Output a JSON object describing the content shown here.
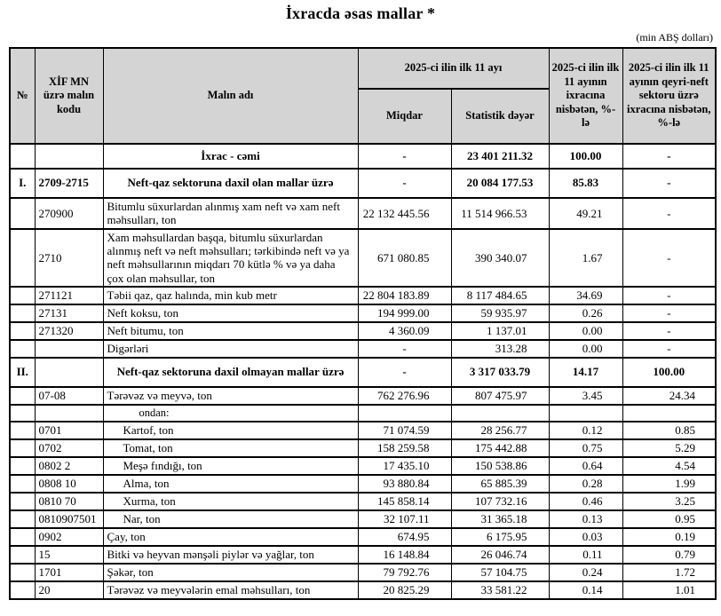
{
  "page": {
    "title": "İxracda əsas mallar *",
    "unit_note": "(min ABŞ dolları)"
  },
  "table": {
    "headers": {
      "num": "№",
      "code": "XİF MN üzrə malın kodu",
      "name": "Malın adı",
      "period_group": "2025-ci ilin ilk 11 ayı",
      "quantity": "Miqdar",
      "stat_value": "Statistik dəyər",
      "share_total_export": "2025-ci ilin ilk 11 ayının ixracına nisbətən, %-lə",
      "share_nonoil_export": "2025-ci ilin ilk 11 ayının qeyri-neft sektoru üzrə ixracına nisbətən, %-lə"
    },
    "rows": [
      {
        "num": "",
        "code": "",
        "name": "İxrac - cəmi",
        "qty": "-",
        "value": "23 401 211.32",
        "share": "100.00",
        "nonoil": "-",
        "style": "total"
      },
      {
        "num": "I.",
        "code": "2709-2715",
        "name": "Neft-qaz sektoruna daxil olan mallar üzrə",
        "qty": "-",
        "value": "20 084 177.53",
        "share": "85.83",
        "nonoil": "-",
        "style": "section"
      },
      {
        "num": "",
        "code": "270900",
        "name": "Bitumlu süxurlardan alınmış xam neft və xam neft məhsulları, ton",
        "qty": "22 132 445.56",
        "value": "11 514 966.53",
        "share": "49.21",
        "nonoil": "-",
        "style": ""
      },
      {
        "num": "",
        "code": "2710",
        "name": "Xam məhsullardan başqa, bitumlu süxurlardan alınmış neft və neft məhsulları; tərkibində neft və ya neft məhsullarının miqdarı 70 kütlə % və ya daha çox olan məhsullar, ton",
        "qty": "671 080.85",
        "value": "390 340.07",
        "share": "1.67",
        "nonoil": "-",
        "style": ""
      },
      {
        "num": "",
        "code": "271121",
        "name": "Təbii qaz, qaz halında, min kub metr",
        "qty": "22 804 183.89",
        "value": "8 117 484.65",
        "share": "34.69",
        "nonoil": "-",
        "style": ""
      },
      {
        "num": "",
        "code": "27131",
        "name": "Neft koksu, ton",
        "qty": "194 999.00",
        "value": "59 935.97",
        "share": "0.26",
        "nonoil": "-",
        "style": ""
      },
      {
        "num": "",
        "code": "271320",
        "name": "Neft bitumu, ton",
        "qty": "4 360.09",
        "value": "1 137.01",
        "share": "0.00",
        "nonoil": "-",
        "style": ""
      },
      {
        "num": "",
        "code": "",
        "name": "Digərləri",
        "qty": "-",
        "value": "313.28",
        "share": "0.00",
        "nonoil": "-",
        "style": ""
      },
      {
        "num": "II.",
        "code": "",
        "name": "Neft-qaz sektoruna daxil olmayan mallar üzrə",
        "qty": "-",
        "value": "3 317 033.79",
        "share": "14.17",
        "nonoil": "100.00",
        "style": "section"
      },
      {
        "num": "",
        "code": "07-08",
        "name": "Tərəvəz və meyvə, ton",
        "qty": "762 276.96",
        "value": "807 475.97",
        "share": "3.45",
        "nonoil": "24.34",
        "style": ""
      },
      {
        "num": "",
        "code": "",
        "name": "ondan:",
        "qty": "",
        "value": "",
        "share": "",
        "nonoil": "",
        "style": "subhead"
      },
      {
        "num": "",
        "code": "0701",
        "name": "Kartof, ton",
        "indent": true,
        "qty": "71 074.59",
        "value": "28 256.77",
        "share": "0.12",
        "nonoil": "0.85",
        "style": ""
      },
      {
        "num": "",
        "code": "0702",
        "name": "Tomat, ton",
        "indent": true,
        "qty": "158 259.58",
        "value": "175 442.88",
        "share": "0.75",
        "nonoil": "5.29",
        "style": ""
      },
      {
        "num": "",
        "code": "0802 2",
        "name": "Meşə fındığı, ton",
        "indent": true,
        "qty": "17 435.10",
        "value": "150 538.86",
        "share": "0.64",
        "nonoil": "4.54",
        "style": ""
      },
      {
        "num": "",
        "code": "0808 10",
        "name": "Alma, ton",
        "indent": true,
        "qty": "93 880.84",
        "value": "65 885.39",
        "share": "0.28",
        "nonoil": "1.99",
        "style": ""
      },
      {
        "num": "",
        "code": "0810 70",
        "name": "Xurma, ton",
        "indent": true,
        "qty": "145 858.14",
        "value": "107 732.16",
        "share": "0.46",
        "nonoil": "3.25",
        "style": ""
      },
      {
        "num": "",
        "code": "0810907501",
        "name": "Nar, ton",
        "indent": true,
        "qty": "32 107.11",
        "value": "31 365.18",
        "share": "0.13",
        "nonoil": "0.95",
        "style": ""
      },
      {
        "num": "",
        "code": "0902",
        "name": "Çay, ton",
        "qty": "674.95",
        "value": "6 175.95",
        "share": "0.03",
        "nonoil": "0.19",
        "style": ""
      },
      {
        "num": "",
        "code": "15",
        "name": "Bitki və heyvan mənşəli piylər və yağlar, ton",
        "qty": "16 148.84",
        "value": "26 046.74",
        "share": "0.11",
        "nonoil": "0.79",
        "style": ""
      },
      {
        "num": "",
        "code": "1701",
        "name": "Şəkər, ton",
        "qty": "79 792.76",
        "value": "57 104.75",
        "share": "0.24",
        "nonoil": "1.72",
        "style": ""
      },
      {
        "num": "",
        "code": "20",
        "name": "Tərəvəz və meyvələrin emal məhsulları, ton",
        "qty": "20 825.29",
        "value": "33 581.22",
        "share": "0.14",
        "nonoil": "1.01",
        "style": ""
      }
    ]
  }
}
